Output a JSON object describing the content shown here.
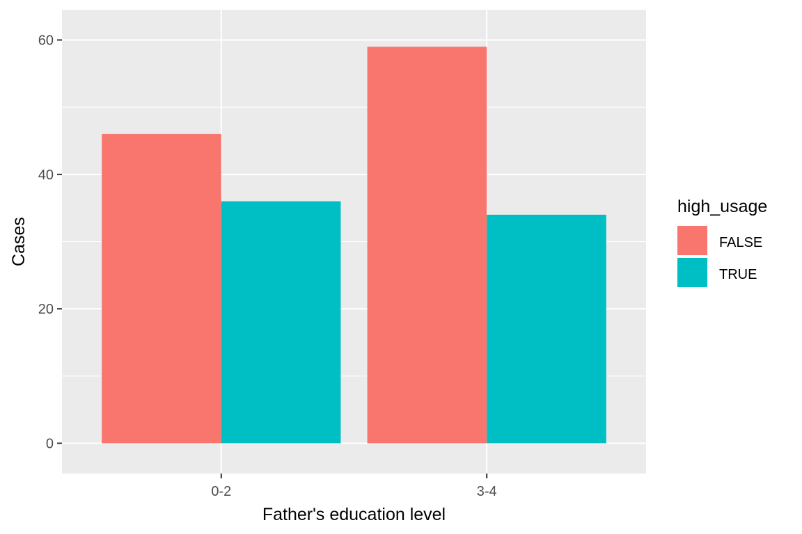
{
  "chart_data": {
    "type": "bar",
    "categories": [
      "0-2",
      "3-4"
    ],
    "series": [
      {
        "name": "FALSE",
        "values": [
          46,
          59
        ],
        "color": "#F8766D"
      },
      {
        "name": "TRUE",
        "values": [
          36,
          34
        ],
        "color": "#00BFC4"
      }
    ],
    "xlabel": "Father's education level",
    "ylabel": "Cases",
    "ylim": [
      -4.5,
      64.5
    ],
    "yticks": [
      0,
      20,
      40,
      60
    ],
    "legend": {
      "title": "high_usage",
      "position": "right"
    },
    "grid": true,
    "panel_background": "#EBEBEB",
    "grid_color": "#FFFFFF"
  }
}
